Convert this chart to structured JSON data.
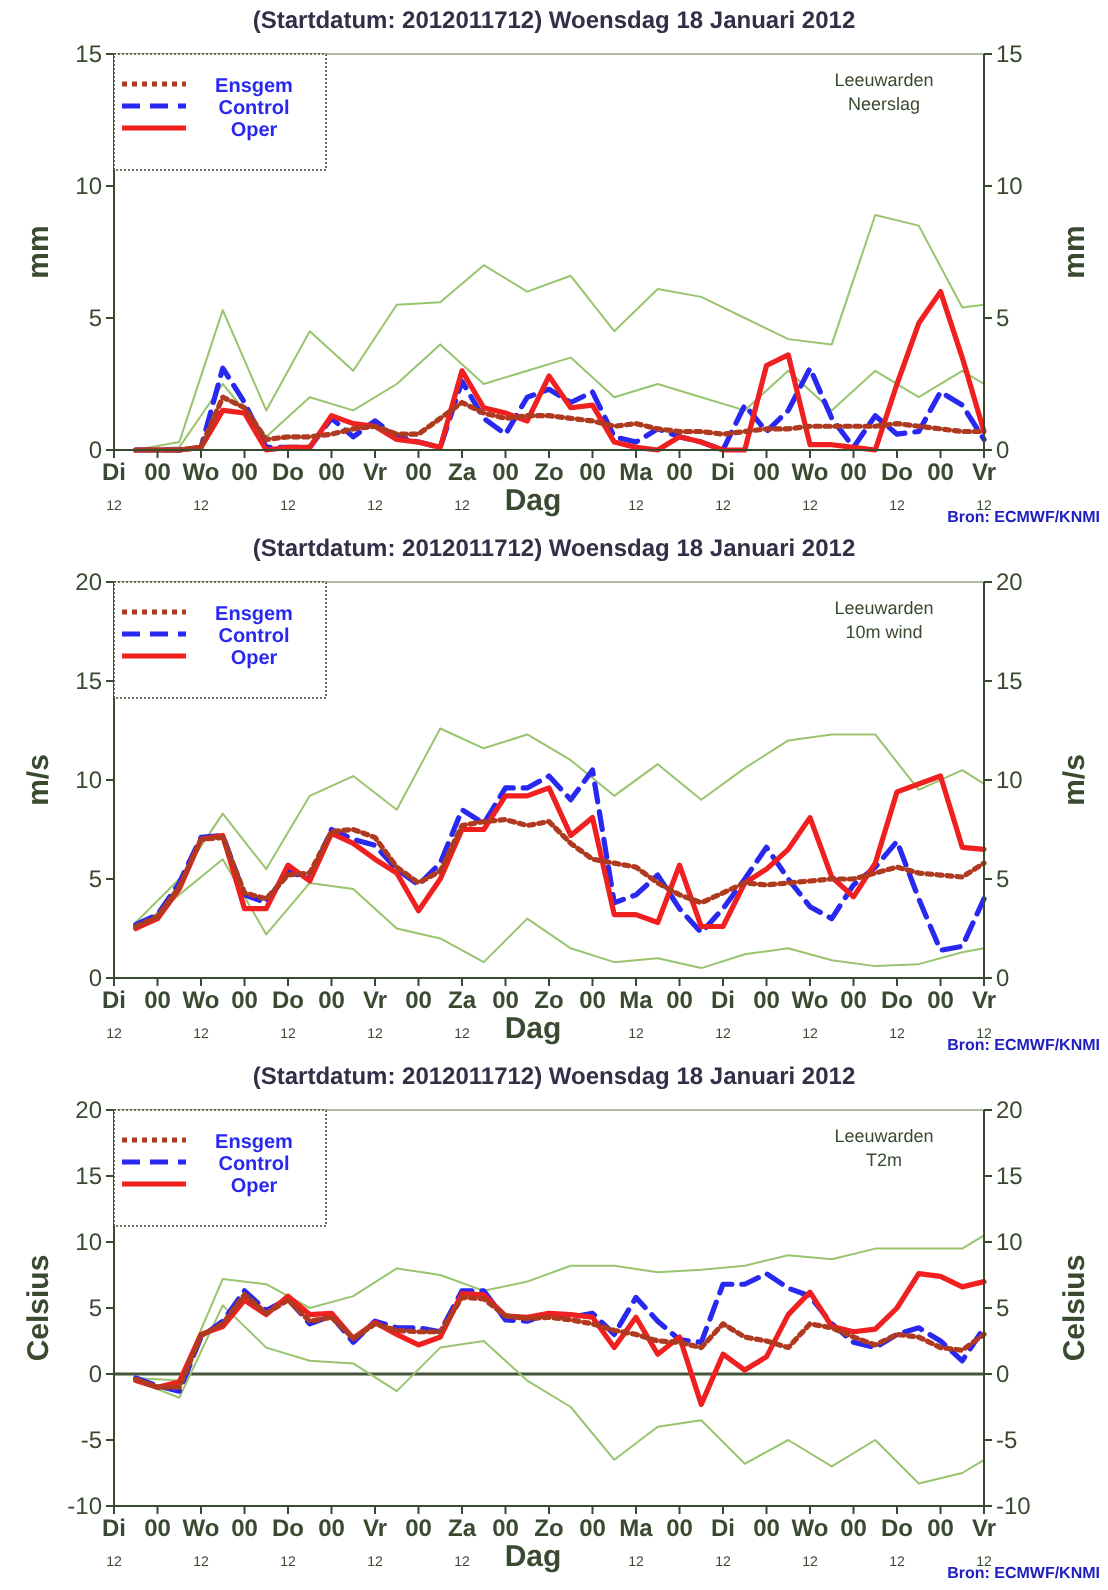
{
  "chart_data": [
    {
      "type": "line",
      "title": "(Startdatum: 2012011712)   Woensdag  18 Januari   2012",
      "xlabel": "Dag",
      "ylabel": "mm",
      "y2label": "mm",
      "annotations": [
        "Leeuwarden",
        "Neerslag",
        "Bron: ECMWF/KNMI"
      ],
      "legend": "top left",
      "x": [
        "2012-01-17T18:00",
        "2012-01-18T00:00",
        "2012-01-18T06:00",
        "2012-01-18T12:00",
        "2012-01-18T18:00",
        "2012-01-19T00:00",
        "2012-01-19T06:00",
        "2012-01-19T12:00",
        "2012-01-19T18:00",
        "2012-01-20T00:00",
        "2012-01-20T06:00",
        "2012-01-20T12:00",
        "2012-01-20T18:00",
        "2012-01-21T00:00",
        "2012-01-21T06:00",
        "2012-01-21T12:00",
        "2012-01-21T18:00",
        "2012-01-22T00:00",
        "2012-01-22T06:00",
        "2012-01-22T12:00",
        "2012-01-22T18:00",
        "2012-01-23T00:00",
        "2012-01-23T06:00",
        "2012-01-23T12:00",
        "2012-01-23T18:00",
        "2012-01-24T00:00",
        "2012-01-24T06:00",
        "2012-01-24T12:00",
        "2012-01-24T18:00",
        "2012-01-25T00:00",
        "2012-01-25T06:00",
        "2012-01-25T12:00",
        "2012-01-25T18:00",
        "2012-01-26T00:00",
        "2012-01-26T06:00",
        "2012-01-26T12:00",
        "2012-01-26T18:00",
        "2012-01-27T00:00",
        "2012-01-27T06:00",
        "2012-01-27T12:00"
      ],
      "xlim": [
        "2012-01-17T12:00",
        "2012-01-27T12:00"
      ],
      "xticks": [
        {
          "value": "2012-01-17T12:00",
          "label": "Di"
        },
        {
          "value": "2012-01-18T00:00",
          "label": "00"
        },
        {
          "value": "2012-01-18T12:00",
          "label": "Wo"
        },
        {
          "value": "2012-01-19T00:00",
          "label": "00"
        },
        {
          "value": "2012-01-19T12:00",
          "label": "Do"
        },
        {
          "value": "2012-01-20T00:00",
          "label": "00"
        },
        {
          "value": "2012-01-20T12:00",
          "label": "Vr"
        },
        {
          "value": "2012-01-21T00:00",
          "label": "00"
        },
        {
          "value": "2012-01-21T12:00",
          "label": "Za"
        },
        {
          "value": "2012-01-22T00:00",
          "label": "00"
        },
        {
          "value": "2012-01-22T12:00",
          "label": "Zo"
        },
        {
          "value": "2012-01-23T00:00",
          "label": "00"
        },
        {
          "value": "2012-01-23T12:00",
          "label": "Ma"
        },
        {
          "value": "2012-01-24T00:00",
          "label": "00"
        },
        {
          "value": "2012-01-24T12:00",
          "label": "Di"
        },
        {
          "value": "2012-01-25T00:00",
          "label": "00"
        },
        {
          "value": "2012-01-25T12:00",
          "label": "Wo"
        },
        {
          "value": "2012-01-26T00:00",
          "label": "00"
        },
        {
          "value": "2012-01-26T12:00",
          "label": "Do"
        },
        {
          "value": "2012-01-27T00:00",
          "label": "00"
        },
        {
          "value": "2012-01-27T12:00",
          "label": "Vr"
        }
      ],
      "x2lim": [
        "2012-01-17T12:00",
        "2012-01-27T12:00"
      ],
      "x2ticks": [
        {
          "value": "2012-01-17T12:00",
          "label": "12"
        },
        {
          "value": "2012-01-18T12:00",
          "label": "12"
        },
        {
          "value": "2012-01-19T12:00",
          "label": "12"
        },
        {
          "value": "2012-01-20T12:00",
          "label": "12"
        },
        {
          "value": "2012-01-21T12:00",
          "label": "12"
        },
        {
          "value": "2012-01-23T12:00",
          "label": "12"
        },
        {
          "value": "2012-01-24T12:00",
          "label": "12"
        },
        {
          "value": "2012-01-25T12:00",
          "label": "12"
        },
        {
          "value": "2012-01-26T12:00",
          "label": "12"
        },
        {
          "value": "2012-01-27T12:00",
          "label": "12"
        }
      ],
      "ylim": [
        0,
        15
      ],
      "yticks": [
        0,
        5,
        10,
        15
      ],
      "y2lim": [
        0,
        15
      ],
      "y2ticks": [
        0,
        5,
        10,
        15
      ],
      "series": [
        {
          "color": "#99c46e",
          "line_style": "solid",
          "x": [
            "2012-01-17T18:00",
            "2012-01-18T06:00",
            "2012-01-18T18:00",
            "2012-01-19T06:00",
            "2012-01-19T18:00",
            "2012-01-20T06:00",
            "2012-01-20T18:00",
            "2012-01-21T06:00",
            "2012-01-21T18:00",
            "2012-01-22T06:00",
            "2012-01-22T18:00",
            "2012-01-23T06:00",
            "2012-01-23T18:00",
            "2012-01-24T06:00",
            "2012-01-24T18:00",
            "2012-01-25T06:00",
            "2012-01-25T18:00",
            "2012-01-26T06:00",
            "2012-01-26T18:00",
            "2012-01-27T06:00",
            "2012-01-27T12:00"
          ],
          "values": [
            0,
            0.3,
            5.3,
            1.5,
            4.5,
            3.0,
            5.5,
            5.6,
            7.0,
            6.0,
            6.6,
            4.5,
            6.1,
            5.8,
            5.0,
            4.2,
            4.0,
            8.9,
            8.5,
            5.4,
            5.5
          ]
        },
        {
          "color": "#99c46e",
          "line_style": "solid",
          "x": [
            "2012-01-17T18:00",
            "2012-01-18T06:00",
            "2012-01-18T18:00",
            "2012-01-19T06:00",
            "2012-01-19T18:00",
            "2012-01-20T06:00",
            "2012-01-20T18:00",
            "2012-01-21T06:00",
            "2012-01-21T18:00",
            "2012-01-22T06:00",
            "2012-01-22T18:00",
            "2012-01-23T06:00",
            "2012-01-23T18:00",
            "2012-01-24T06:00",
            "2012-01-24T18:00",
            "2012-01-25T06:00",
            "2012-01-25T18:00",
            "2012-01-26T06:00",
            "2012-01-26T18:00",
            "2012-01-27T06:00",
            "2012-01-27T12:00"
          ],
          "values": [
            0,
            0.1,
            2.5,
            0.5,
            2.0,
            1.5,
            2.5,
            4.0,
            2.5,
            3.0,
            3.5,
            2.0,
            2.5,
            2.0,
            1.5,
            3.0,
            1.5,
            3.0,
            2.0,
            3.0,
            2.5
          ]
        },
        {
          "name": "Ensgem",
          "color": "#b03a20",
          "line_style": "dotted",
          "values": [
            0,
            0,
            0,
            0.1,
            2.0,
            1.6,
            0.4,
            0.5,
            0.5,
            0.6,
            0.8,
            0.9,
            0.6,
            0.6,
            1.2,
            1.8,
            1.4,
            1.2,
            1.3,
            1.3,
            1.2,
            1.1,
            0.9,
            1.0,
            0.8,
            0.7,
            0.7,
            0.6,
            0.7,
            0.8,
            0.8,
            0.9,
            0.9,
            0.9,
            0.9,
            1.0,
            0.9,
            0.8,
            0.7,
            0.7
          ]
        },
        {
          "name": "Control",
          "color": "#2828f0",
          "line_style": "dashed",
          "values": [
            0,
            0,
            0,
            0.1,
            3.1,
            1.8,
            0.1,
            0.1,
            0.1,
            1.2,
            0.5,
            1.1,
            0.5,
            0.3,
            0.1,
            2.6,
            1.2,
            0.6,
            2.0,
            2.3,
            1.8,
            2.2,
            0.5,
            0.3,
            0.8,
            0.5,
            0.3,
            0,
            1.7,
            0.7,
            1.5,
            3.1,
            1.2,
            0.1,
            1.3,
            0.6,
            0.7,
            2.2,
            1.7,
            0.4
          ]
        },
        {
          "name": "Oper",
          "color": "#f02020",
          "line_style": "solid",
          "values": [
            0,
            0,
            0,
            0.1,
            1.5,
            1.4,
            0,
            0.1,
            0.1,
            1.3,
            1.0,
            0.9,
            0.4,
            0.3,
            0.1,
            3.0,
            1.6,
            1.4,
            1.1,
            2.8,
            1.6,
            1.7,
            0.3,
            0.1,
            0,
            0.5,
            0.3,
            0,
            0,
            3.2,
            3.6,
            0.2,
            0.2,
            0.1,
            0,
            2.5,
            4.8,
            6.0,
            3.5,
            0.7
          ]
        }
      ]
    },
    {
      "type": "line",
      "title": "(Startdatum: 2012011712)   Woensdag  18 Januari   2012",
      "xlabel": "Dag",
      "ylabel": "m/s",
      "y2label": "m/s",
      "annotations": [
        "Leeuwarden",
        "10m wind",
        "Bron: ECMWF/KNMI"
      ],
      "legend": "top left",
      "x": [
        "2012-01-17T18:00",
        "2012-01-18T00:00",
        "2012-01-18T06:00",
        "2012-01-18T12:00",
        "2012-01-18T18:00",
        "2012-01-19T00:00",
        "2012-01-19T06:00",
        "2012-01-19T12:00",
        "2012-01-19T18:00",
        "2012-01-20T00:00",
        "2012-01-20T06:00",
        "2012-01-20T12:00",
        "2012-01-20T18:00",
        "2012-01-21T00:00",
        "2012-01-21T06:00",
        "2012-01-21T12:00",
        "2012-01-21T18:00",
        "2012-01-22T00:00",
        "2012-01-22T06:00",
        "2012-01-22T12:00",
        "2012-01-22T18:00",
        "2012-01-23T00:00",
        "2012-01-23T06:00",
        "2012-01-23T12:00",
        "2012-01-23T18:00",
        "2012-01-24T00:00",
        "2012-01-24T06:00",
        "2012-01-24T12:00",
        "2012-01-24T18:00",
        "2012-01-25T00:00",
        "2012-01-25T06:00",
        "2012-01-25T12:00",
        "2012-01-25T18:00",
        "2012-01-26T00:00",
        "2012-01-26T06:00",
        "2012-01-26T12:00",
        "2012-01-26T18:00",
        "2012-01-27T00:00",
        "2012-01-27T06:00",
        "2012-01-27T12:00"
      ],
      "xlim": [
        "2012-01-17T12:00",
        "2012-01-27T12:00"
      ],
      "xticks": [
        {
          "value": "2012-01-17T12:00",
          "label": "Di"
        },
        {
          "value": "2012-01-18T00:00",
          "label": "00"
        },
        {
          "value": "2012-01-18T12:00",
          "label": "Wo"
        },
        {
          "value": "2012-01-19T00:00",
          "label": "00"
        },
        {
          "value": "2012-01-19T12:00",
          "label": "Do"
        },
        {
          "value": "2012-01-20T00:00",
          "label": "00"
        },
        {
          "value": "2012-01-20T12:00",
          "label": "Vr"
        },
        {
          "value": "2012-01-21T00:00",
          "label": "00"
        },
        {
          "value": "2012-01-21T12:00",
          "label": "Za"
        },
        {
          "value": "2012-01-22T00:00",
          "label": "00"
        },
        {
          "value": "2012-01-22T12:00",
          "label": "Zo"
        },
        {
          "value": "2012-01-23T00:00",
          "label": "00"
        },
        {
          "value": "2012-01-23T12:00",
          "label": "Ma"
        },
        {
          "value": "2012-01-24T00:00",
          "label": "00"
        },
        {
          "value": "2012-01-24T12:00",
          "label": "Di"
        },
        {
          "value": "2012-01-25T00:00",
          "label": "00"
        },
        {
          "value": "2012-01-25T12:00",
          "label": "Wo"
        },
        {
          "value": "2012-01-26T00:00",
          "label": "00"
        },
        {
          "value": "2012-01-26T12:00",
          "label": "Do"
        },
        {
          "value": "2012-01-27T00:00",
          "label": "00"
        },
        {
          "value": "2012-01-27T12:00",
          "label": "Vr"
        }
      ],
      "x2lim": [
        "2012-01-17T12:00",
        "2012-01-27T12:00"
      ],
      "x2ticks": [
        {
          "value": "2012-01-17T12:00",
          "label": "12"
        },
        {
          "value": "2012-01-18T12:00",
          "label": "12"
        },
        {
          "value": "2012-01-19T12:00",
          "label": "12"
        },
        {
          "value": "2012-01-20T12:00",
          "label": "12"
        },
        {
          "value": "2012-01-21T12:00",
          "label": "12"
        },
        {
          "value": "2012-01-23T12:00",
          "label": "12"
        },
        {
          "value": "2012-01-24T12:00",
          "label": "12"
        },
        {
          "value": "2012-01-25T12:00",
          "label": "12"
        },
        {
          "value": "2012-01-26T12:00",
          "label": "12"
        },
        {
          "value": "2012-01-27T12:00",
          "label": "12"
        }
      ],
      "ylim": [
        0,
        20
      ],
      "yticks": [
        0,
        5,
        10,
        15,
        20
      ],
      "y2lim": [
        0,
        20
      ],
      "y2ticks": [
        0,
        5,
        10,
        15,
        20
      ],
      "series": [
        {
          "color": "#99c46e",
          "line_style": "solid",
          "x": [
            "2012-01-17T18:00",
            "2012-01-18T06:00",
            "2012-01-18T18:00",
            "2012-01-19T06:00",
            "2012-01-19T18:00",
            "2012-01-20T06:00",
            "2012-01-20T18:00",
            "2012-01-21T06:00",
            "2012-01-21T18:00",
            "2012-01-22T06:00",
            "2012-01-22T18:00",
            "2012-01-23T06:00",
            "2012-01-23T18:00",
            "2012-01-24T06:00",
            "2012-01-24T18:00",
            "2012-01-25T06:00",
            "2012-01-25T18:00",
            "2012-01-26T06:00",
            "2012-01-26T18:00",
            "2012-01-27T06:00",
            "2012-01-27T12:00"
          ],
          "values": [
            2.8,
            5.0,
            8.3,
            5.5,
            9.2,
            10.2,
            8.5,
            12.6,
            11.6,
            12.3,
            11.0,
            9.2,
            10.8,
            9.0,
            10.6,
            12.0,
            12.3,
            12.3,
            9.5,
            10.5,
            9.8
          ]
        },
        {
          "color": "#99c46e",
          "line_style": "solid",
          "x": [
            "2012-01-17T18:00",
            "2012-01-18T06:00",
            "2012-01-18T18:00",
            "2012-01-19T06:00",
            "2012-01-19T18:00",
            "2012-01-20T06:00",
            "2012-01-20T18:00",
            "2012-01-21T06:00",
            "2012-01-21T18:00",
            "2012-01-22T06:00",
            "2012-01-22T18:00",
            "2012-01-23T06:00",
            "2012-01-23T18:00",
            "2012-01-24T06:00",
            "2012-01-24T18:00",
            "2012-01-25T06:00",
            "2012-01-25T18:00",
            "2012-01-26T06:00",
            "2012-01-26T18:00",
            "2012-01-27T06:00",
            "2012-01-27T12:00"
          ],
          "values": [
            2.4,
            4.2,
            6.0,
            2.2,
            4.8,
            4.5,
            2.5,
            2.0,
            0.8,
            3.0,
            1.5,
            0.8,
            1.0,
            0.5,
            1.2,
            1.5,
            0.9,
            0.6,
            0.7,
            1.3,
            1.5
          ]
        },
        {
          "name": "Ensgem",
          "color": "#b03a20",
          "line_style": "dotted",
          "values": [
            2.6,
            3.1,
            4.6,
            7.0,
            7.1,
            4.3,
            4.0,
            5.2,
            5.3,
            7.4,
            7.5,
            7.1,
            5.6,
            4.8,
            5.4,
            7.7,
            7.9,
            8.0,
            7.7,
            7.9,
            6.8,
            6.0,
            5.8,
            5.6,
            4.8,
            4.2,
            3.8,
            4.3,
            4.8,
            4.7,
            4.8,
            4.9,
            5.0,
            5.0,
            5.3,
            5.6,
            5.3,
            5.2,
            5.1,
            5.8
          ]
        },
        {
          "name": "Control",
          "color": "#2828f0",
          "line_style": "dashed",
          "values": [
            2.7,
            3.2,
            4.8,
            7.1,
            7.2,
            4.2,
            3.8,
            5.4,
            5.0,
            7.5,
            7.0,
            6.7,
            5.5,
            4.7,
            5.8,
            8.5,
            7.8,
            9.6,
            9.6,
            10.2,
            9.0,
            10.5,
            3.8,
            4.2,
            5.2,
            3.5,
            2.3,
            3.5,
            5.0,
            6.6,
            5.0,
            3.6,
            3.0,
            4.7,
            5.6,
            6.9,
            4.0,
            1.4,
            1.6,
            4.0
          ]
        },
        {
          "name": "Oper",
          "color": "#f02020",
          "line_style": "solid",
          "values": [
            2.5,
            3.0,
            4.5,
            7.0,
            7.2,
            3.5,
            3.5,
            5.7,
            4.9,
            7.3,
            6.8,
            6.0,
            5.3,
            3.4,
            5.0,
            7.5,
            7.5,
            9.2,
            9.2,
            9.6,
            7.2,
            8.1,
            3.2,
            3.2,
            2.8,
            5.7,
            2.6,
            2.6,
            4.8,
            5.5,
            6.5,
            8.1,
            5.1,
            4.1,
            5.8,
            9.4,
            9.8,
            10.2,
            6.6,
            6.5
          ]
        }
      ]
    },
    {
      "type": "line",
      "title": "(Startdatum: 2012011712)   Woensdag  18 Januari   2012",
      "xlabel": "Dag",
      "ylabel": "Celsius",
      "y2label": "Celsius",
      "annotations": [
        "Leeuwarden",
        "T2m",
        "Bron: ECMWF/KNMI"
      ],
      "legend": "top left",
      "x": [
        "2012-01-17T18:00",
        "2012-01-18T00:00",
        "2012-01-18T06:00",
        "2012-01-18T12:00",
        "2012-01-18T18:00",
        "2012-01-19T00:00",
        "2012-01-19T06:00",
        "2012-01-19T12:00",
        "2012-01-19T18:00",
        "2012-01-20T00:00",
        "2012-01-20T06:00",
        "2012-01-20T12:00",
        "2012-01-20T18:00",
        "2012-01-21T00:00",
        "2012-01-21T06:00",
        "2012-01-21T12:00",
        "2012-01-21T18:00",
        "2012-01-22T00:00",
        "2012-01-22T06:00",
        "2012-01-22T12:00",
        "2012-01-22T18:00",
        "2012-01-23T00:00",
        "2012-01-23T06:00",
        "2012-01-23T12:00",
        "2012-01-23T18:00",
        "2012-01-24T00:00",
        "2012-01-24T06:00",
        "2012-01-24T12:00",
        "2012-01-24T18:00",
        "2012-01-25T00:00",
        "2012-01-25T06:00",
        "2012-01-25T12:00",
        "2012-01-25T18:00",
        "2012-01-26T00:00",
        "2012-01-26T06:00",
        "2012-01-26T12:00",
        "2012-01-26T18:00",
        "2012-01-27T00:00",
        "2012-01-27T06:00",
        "2012-01-27T12:00"
      ],
      "xlim": [
        "2012-01-17T12:00",
        "2012-01-27T12:00"
      ],
      "xticks": [
        {
          "value": "2012-01-17T12:00",
          "label": "Di"
        },
        {
          "value": "2012-01-18T00:00",
          "label": "00"
        },
        {
          "value": "2012-01-18T12:00",
          "label": "Wo"
        },
        {
          "value": "2012-01-19T00:00",
          "label": "00"
        },
        {
          "value": "2012-01-19T12:00",
          "label": "Do"
        },
        {
          "value": "2012-01-20T00:00",
          "label": "00"
        },
        {
          "value": "2012-01-20T12:00",
          "label": "Vr"
        },
        {
          "value": "2012-01-21T00:00",
          "label": "00"
        },
        {
          "value": "2012-01-21T12:00",
          "label": "Za"
        },
        {
          "value": "2012-01-22T00:00",
          "label": "00"
        },
        {
          "value": "2012-01-22T12:00",
          "label": "Zo"
        },
        {
          "value": "2012-01-23T00:00",
          "label": "00"
        },
        {
          "value": "2012-01-23T12:00",
          "label": "Ma"
        },
        {
          "value": "2012-01-24T00:00",
          "label": "00"
        },
        {
          "value": "2012-01-24T12:00",
          "label": "Di"
        },
        {
          "value": "2012-01-25T00:00",
          "label": "00"
        },
        {
          "value": "2012-01-25T12:00",
          "label": "Wo"
        },
        {
          "value": "2012-01-26T00:00",
          "label": "00"
        },
        {
          "value": "2012-01-26T12:00",
          "label": "Do"
        },
        {
          "value": "2012-01-27T00:00",
          "label": "00"
        },
        {
          "value": "2012-01-27T12:00",
          "label": "Vr"
        }
      ],
      "x2lim": [
        "2012-01-17T12:00",
        "2012-01-27T12:00"
      ],
      "x2ticks": [
        {
          "value": "2012-01-17T12:00",
          "label": "12"
        },
        {
          "value": "2012-01-18T12:00",
          "label": "12"
        },
        {
          "value": "2012-01-19T12:00",
          "label": "12"
        },
        {
          "value": "2012-01-20T12:00",
          "label": "12"
        },
        {
          "value": "2012-01-21T12:00",
          "label": "12"
        },
        {
          "value": "2012-01-23T12:00",
          "label": "12"
        },
        {
          "value": "2012-01-24T12:00",
          "label": "12"
        },
        {
          "value": "2012-01-25T12:00",
          "label": "12"
        },
        {
          "value": "2012-01-26T12:00",
          "label": "12"
        },
        {
          "value": "2012-01-27T12:00",
          "label": "12"
        }
      ],
      "ylim": [
        -10,
        20
      ],
      "yticks": [
        -10,
        -5,
        0,
        5,
        10,
        15,
        20
      ],
      "y2lim": [
        -10,
        20
      ],
      "y2ticks": [
        -10,
        -5,
        0,
        5,
        10,
        15,
        20
      ],
      "ref_lines": [
        {
          "axis": "y",
          "value": 0,
          "color": "#44553a"
        }
      ],
      "series": [
        {
          "color": "#99c46e",
          "line_style": "solid",
          "x": [
            "2012-01-17T18:00",
            "2012-01-18T06:00",
            "2012-01-18T18:00",
            "2012-01-19T06:00",
            "2012-01-19T18:00",
            "2012-01-20T06:00",
            "2012-01-20T18:00",
            "2012-01-21T06:00",
            "2012-01-21T18:00",
            "2012-01-22T06:00",
            "2012-01-22T18:00",
            "2012-01-23T06:00",
            "2012-01-23T18:00",
            "2012-01-24T06:00",
            "2012-01-24T18:00",
            "2012-01-25T06:00",
            "2012-01-25T18:00",
            "2012-01-26T06:00",
            "2012-01-26T18:00",
            "2012-01-27T06:00",
            "2012-01-27T12:00"
          ],
          "values": [
            -0.3,
            -0.5,
            7.2,
            6.8,
            5.0,
            5.9,
            8.0,
            7.5,
            6.3,
            7.0,
            8.2,
            8.2,
            7.7,
            7.9,
            8.2,
            9.0,
            8.7,
            9.5,
            9.5,
            9.5,
            10.5
          ]
        },
        {
          "color": "#99c46e",
          "line_style": "solid",
          "x": [
            "2012-01-17T18:00",
            "2012-01-18T06:00",
            "2012-01-18T18:00",
            "2012-01-19T06:00",
            "2012-01-19T18:00",
            "2012-01-20T06:00",
            "2012-01-20T18:00",
            "2012-01-21T06:00",
            "2012-01-21T18:00",
            "2012-01-22T06:00",
            "2012-01-22T18:00",
            "2012-01-23T06:00",
            "2012-01-23T18:00",
            "2012-01-24T06:00",
            "2012-01-24T18:00",
            "2012-01-25T06:00",
            "2012-01-25T18:00",
            "2012-01-26T06:00",
            "2012-01-26T18:00",
            "2012-01-27T06:00",
            "2012-01-27T12:00"
          ],
          "values": [
            -0.5,
            -1.8,
            5.2,
            2.0,
            1.0,
            0.8,
            -1.3,
            2.0,
            2.5,
            -0.5,
            -2.5,
            -6.5,
            -4.0,
            -3.5,
            -6.8,
            -5.0,
            -7.0,
            -5.0,
            -8.3,
            -7.5,
            -6.5
          ]
        },
        {
          "name": "Ensgem",
          "color": "#b03a20",
          "line_style": "dotted",
          "values": [
            -0.4,
            -1.0,
            -1.0,
            2.9,
            3.8,
            6.0,
            4.6,
            5.6,
            4.0,
            4.3,
            2.7,
            3.8,
            3.3,
            3.2,
            3.2,
            5.8,
            5.7,
            4.4,
            4.2,
            4.3,
            4.1,
            3.8,
            3.3,
            3.0,
            2.5,
            2.4,
            2.0,
            3.8,
            2.8,
            2.5,
            2.0,
            3.8,
            3.5,
            2.8,
            2.2,
            3.0,
            2.8,
            2.0,
            1.8,
            3.0
          ]
        },
        {
          "name": "Control",
          "color": "#2828f0",
          "line_style": "dashed",
          "values": [
            -0.3,
            -0.9,
            -1.3,
            2.8,
            4.0,
            6.3,
            4.8,
            5.7,
            3.8,
            4.4,
            2.4,
            4.0,
            3.5,
            3.5,
            3.2,
            6.3,
            6.3,
            4.1,
            4.0,
            4.6,
            4.3,
            4.6,
            3.0,
            5.8,
            4.0,
            2.6,
            2.4,
            6.8,
            6.8,
            7.6,
            6.5,
            5.9,
            3.8,
            2.4,
            2.0,
            3.0,
            3.5,
            2.5,
            1.0,
            3.5
          ]
        },
        {
          "name": "Oper",
          "color": "#f02020",
          "line_style": "solid",
          "values": [
            -0.5,
            -1.0,
            -0.6,
            3.0,
            3.6,
            5.6,
            4.5,
            5.9,
            4.5,
            4.6,
            2.7,
            3.9,
            3.0,
            2.2,
            2.8,
            6.1,
            6.0,
            4.4,
            4.3,
            4.6,
            4.5,
            4.3,
            2.0,
            4.3,
            1.5,
            2.8,
            -2.3,
            1.5,
            0.3,
            1.3,
            4.5,
            6.2,
            3.6,
            3.2,
            3.4,
            5.0,
            7.6,
            7.4,
            6.6,
            7.0
          ]
        }
      ]
    }
  ]
}
